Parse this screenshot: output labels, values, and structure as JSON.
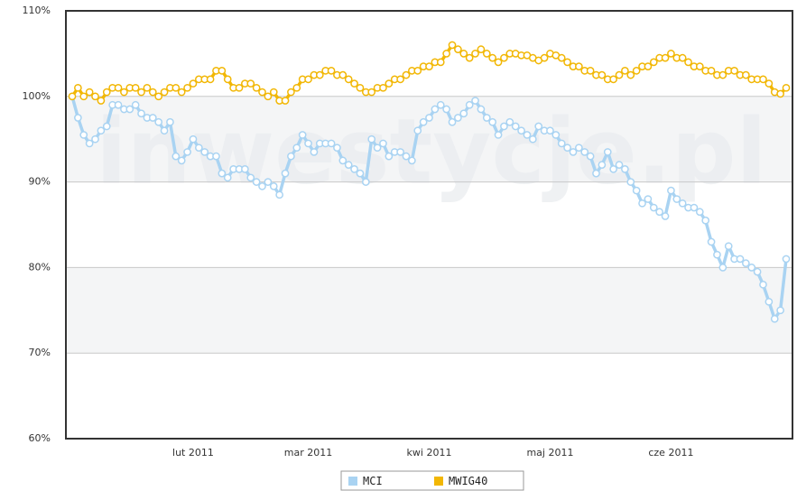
{
  "chart_data": {
    "type": "line",
    "watermark": "inwestycje.pl",
    "categories": [
      null,
      null,
      null,
      null,
      null,
      null,
      null,
      null,
      null,
      null,
      null,
      null,
      null,
      null,
      null,
      null,
      null,
      null,
      null,
      null,
      null,
      "lut 2011",
      null,
      null,
      null,
      null,
      null,
      null,
      null,
      null,
      null,
      null,
      null,
      null,
      null,
      null,
      null,
      null,
      null,
      null,
      null,
      "mar 2011",
      null,
      null,
      null,
      null,
      null,
      null,
      null,
      null,
      null,
      null,
      null,
      null,
      null,
      null,
      null,
      null,
      null,
      null,
      null,
      null,
      "kwi 2011",
      null,
      null,
      null,
      null,
      null,
      null,
      null,
      null,
      null,
      null,
      null,
      null,
      null,
      null,
      null,
      null,
      null,
      null,
      null,
      null,
      "maj 2011",
      null,
      null,
      null,
      null,
      null,
      null,
      null,
      null,
      null,
      null,
      null,
      null,
      null,
      null,
      null,
      null,
      null,
      null,
      null,
      null,
      "cze 2011",
      null,
      null,
      null,
      null,
      null,
      null,
      null,
      null,
      null,
      null,
      null,
      null,
      null,
      null,
      null,
      null,
      null,
      null,
      null,
      null
    ],
    "series": [
      {
        "name": "MCI",
        "color": "#a9d3f2",
        "values": [
          100,
          97.5,
          95.5,
          94.5,
          95,
          96,
          96.5,
          99,
          99,
          98.5,
          98.5,
          99,
          98,
          97.5,
          97.5,
          97,
          96,
          97,
          93,
          92.5,
          93.5,
          95,
          94,
          93.5,
          93,
          93,
          91,
          90.5,
          91.5,
          91.5,
          91.5,
          90.5,
          90,
          89.5,
          90,
          89.5,
          88.5,
          91,
          93,
          94,
          95.5,
          94.5,
          93.5,
          94.5,
          94.5,
          94.5,
          94,
          92.5,
          92,
          91.5,
          91,
          90,
          95,
          94,
          94.5,
          93,
          93.5,
          93.5,
          93,
          92.5,
          96,
          97,
          97.5,
          98.5,
          99,
          98.5,
          97,
          97.5,
          98,
          99,
          99.5,
          98.5,
          97.5,
          97,
          95.5,
          96.5,
          97,
          96.5,
          96,
          95.5,
          95,
          96.5,
          96,
          96,
          95.5,
          94.5,
          94,
          93.5,
          94,
          93.5,
          93,
          91,
          92,
          93.5,
          91.5,
          92,
          91.5,
          90,
          89,
          87.5,
          88,
          87,
          86.5,
          86,
          89,
          88,
          87.5,
          87,
          87,
          86.5,
          85.5,
          83,
          81.5,
          80,
          82.5,
          81,
          81,
          80.5,
          80,
          79.5,
          78,
          76,
          74,
          75,
          81
        ]
      },
      {
        "name": "MWIG40",
        "color": "#f2b705",
        "values": [
          100,
          101,
          100,
          100.5,
          100,
          99.5,
          100.5,
          101,
          101,
          100.5,
          101,
          101,
          100.5,
          101,
          100.5,
          100,
          100.5,
          101,
          101,
          100.5,
          101,
          101.5,
          102,
          102,
          102,
          103,
          103,
          102,
          101,
          101,
          101.5,
          101.5,
          101,
          100.5,
          100,
          100.5,
          99.5,
          99.5,
          100.5,
          101,
          102,
          102,
          102.5,
          102.5,
          103,
          103,
          102.5,
          102.5,
          102,
          101.5,
          101,
          100.5,
          100.5,
          101,
          101,
          101.5,
          102,
          102,
          102.5,
          103,
          103,
          103.5,
          103.5,
          104,
          104,
          105,
          106,
          105.5,
          105,
          104.5,
          105,
          105.5,
          105,
          104.5,
          104,
          104.5,
          105,
          105,
          104.8,
          104.8,
          104.5,
          104.2,
          104.5,
          105,
          104.8,
          104.5,
          104,
          103.5,
          103.5,
          103,
          103,
          102.5,
          102.5,
          102,
          102,
          102.5,
          103,
          102.5,
          103,
          103.5,
          103.5,
          104,
          104.5,
          104.5,
          105,
          104.5,
          104.5,
          104,
          103.5,
          103.5,
          103,
          103,
          102.5,
          102.5,
          103,
          103,
          102.5,
          102.5,
          102,
          102,
          102,
          101.5,
          100.5,
          100.3,
          101
        ]
      }
    ],
    "ylim": [
      60,
      110
    ],
    "yticks": [
      {
        "value": 60,
        "label": "60%"
      },
      {
        "value": 70,
        "label": "70%"
      },
      {
        "value": 80,
        "label": "80%"
      },
      {
        "value": 90,
        "label": "90%"
      },
      {
        "value": 100,
        "label": "100%"
      },
      {
        "value": 110,
        "label": "110%"
      }
    ],
    "grid": true,
    "alternate_bands": true,
    "legend": "bottom"
  }
}
